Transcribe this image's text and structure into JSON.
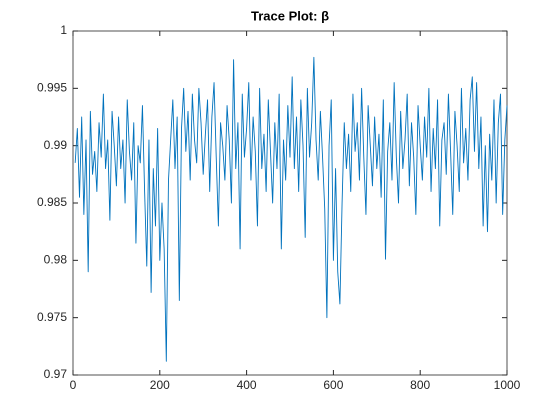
{
  "chart_data": {
    "type": "line",
    "title": "Trace Plot: β",
    "xlim": [
      0,
      1000
    ],
    "xticks": [
      0,
      200,
      400,
      600,
      800,
      1000
    ],
    "ylim": [
      0.97,
      1
    ],
    "yticks": [
      0.97,
      0.975,
      0.98,
      0.985,
      0.99,
      0.995,
      1
    ],
    "grid": false,
    "box": true,
    "x": [
      5,
      10,
      15,
      20,
      25,
      30,
      35,
      40,
      45,
      50,
      55,
      60,
      65,
      70,
      75,
      80,
      85,
      90,
      95,
      100,
      105,
      110,
      115,
      120,
      125,
      130,
      135,
      140,
      145,
      150,
      155,
      160,
      165,
      170,
      175,
      180,
      185,
      190,
      195,
      200,
      205,
      210,
      215,
      220,
      225,
      230,
      235,
      240,
      245,
      250,
      255,
      260,
      265,
      270,
      275,
      280,
      285,
      290,
      295,
      300,
      305,
      310,
      315,
      320,
      325,
      330,
      335,
      340,
      345,
      350,
      355,
      360,
      365,
      370,
      375,
      380,
      385,
      390,
      395,
      400,
      405,
      410,
      415,
      420,
      425,
      430,
      435,
      440,
      445,
      450,
      455,
      460,
      465,
      470,
      475,
      480,
      485,
      490,
      495,
      500,
      505,
      510,
      515,
      520,
      525,
      530,
      535,
      540,
      545,
      550,
      555,
      560,
      565,
      570,
      575,
      580,
      585,
      590,
      595,
      600,
      605,
      610,
      615,
      620,
      625,
      630,
      635,
      640,
      645,
      650,
      655,
      660,
      665,
      670,
      675,
      680,
      685,
      690,
      695,
      700,
      705,
      710,
      715,
      720,
      725,
      730,
      735,
      740,
      745,
      750,
      755,
      760,
      765,
      770,
      775,
      780,
      785,
      790,
      795,
      800,
      805,
      810,
      815,
      820,
      825,
      830,
      835,
      840,
      845,
      850,
      855,
      860,
      865,
      870,
      875,
      880,
      885,
      890,
      895,
      900,
      905,
      910,
      915,
      920,
      925,
      930,
      935,
      940,
      945,
      950,
      955,
      960,
      965,
      970,
      975,
      980,
      985,
      990,
      995,
      1000
    ],
    "series": [
      {
        "color": "#0072bd",
        "values": [
          0.9885,
          0.9915,
          0.9855,
          0.9925,
          0.984,
          0.9905,
          0.979,
          0.993,
          0.9875,
          0.9895,
          0.986,
          0.992,
          0.989,
          0.9945,
          0.988,
          0.9905,
          0.9835,
          0.993,
          0.99,
          0.9865,
          0.9925,
          0.988,
          0.9905,
          0.985,
          0.994,
          0.9895,
          0.987,
          0.992,
          0.9815,
          0.99,
          0.9885,
          0.9935,
          0.986,
          0.9795,
          0.9905,
          0.9772,
          0.988,
          0.983,
          0.9915,
          0.98,
          0.985,
          0.981,
          0.9712,
          0.987,
          0.9905,
          0.994,
          0.988,
          0.9925,
          0.9765,
          0.9915,
          0.995,
          0.9895,
          0.993,
          0.987,
          0.9945,
          0.9905,
          0.9885,
          0.995,
          0.992,
          0.9875,
          0.991,
          0.994,
          0.986,
          0.9925,
          0.9955,
          0.989,
          0.983,
          0.992,
          0.99,
          0.987,
          0.9935,
          0.9905,
          0.985,
          0.9975,
          0.988,
          0.992,
          0.981,
          0.9945,
          0.989,
          0.9915,
          0.9955,
          0.987,
          0.9925,
          0.9895,
          0.983,
          0.995,
          0.988,
          0.991,
          0.986,
          0.994,
          0.9895,
          0.985,
          0.992,
          0.988,
          0.9945,
          0.981,
          0.9905,
          0.987,
          0.9935,
          0.989,
          0.996,
          0.988,
          0.9925,
          0.986,
          0.994,
          0.99,
          0.982,
          0.995,
          0.989,
          0.992,
          0.9977,
          0.9905,
          0.987,
          0.993,
          0.989,
          0.9845,
          0.975,
          0.99,
          0.994,
          0.98,
          0.988,
          0.979,
          0.9762,
          0.985,
          0.992,
          0.988,
          0.991,
          0.986,
          0.9945,
          0.9895,
          0.992,
          0.987,
          0.995,
          0.989,
          0.984,
          0.9935,
          0.99,
          0.9865,
          0.9925,
          0.988,
          0.991,
          0.9855,
          0.994,
          0.9801,
          0.9895,
          0.992,
          0.987,
          0.9955,
          0.989,
          0.985,
          0.993,
          0.988,
          0.9905,
          0.9945,
          0.9865,
          0.992,
          0.989,
          0.984,
          0.9935,
          0.99,
          0.987,
          0.9925,
          0.989,
          0.995,
          0.986,
          0.9915,
          0.988,
          0.994,
          0.983,
          0.9905,
          0.992,
          0.9875,
          0.9945,
          0.9895,
          0.984,
          0.993,
          0.99,
          0.986,
          0.995,
          0.9885,
          0.9915,
          0.987,
          0.994,
          0.996,
          0.9895,
          0.9955,
          0.988,
          0.9925,
          0.983,
          0.99,
          0.9825,
          0.991,
          0.987,
          0.994,
          0.985,
          0.992,
          0.9945,
          0.984,
          0.9905,
          0.9935
        ]
      }
    ]
  }
}
